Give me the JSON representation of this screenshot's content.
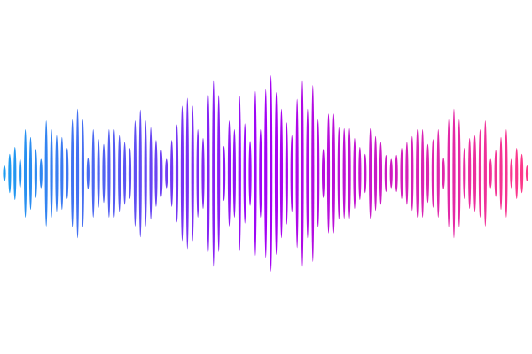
{
  "waveform": {
    "colors": {
      "start": "#1a9ff0",
      "middle": "#a300f5",
      "end": "#ff3a85"
    },
    "amplitudes": [
      0.08,
      0.2,
      0.27,
      0.15,
      0.45,
      0.37,
      0.25,
      0.15,
      0.54,
      0.45,
      0.39,
      0.37,
      0.26,
      0.55,
      0.66,
      0.55,
      0.16,
      0.45,
      0.35,
      0.3,
      0.45,
      0.45,
      0.39,
      0.32,
      0.26,
      0.54,
      0.65,
      0.54,
      0.47,
      0.34,
      0.24,
      0.15,
      0.34,
      0.5,
      0.69,
      0.77,
      0.69,
      0.45,
      0.36,
      0.8,
      0.95,
      0.8,
      0.28,
      0.54,
      0.45,
      0.79,
      0.51,
      0.33,
      0.84,
      0.45,
      0.86,
      1.0,
      0.83,
      0.66,
      0.52,
      0.39,
      0.76,
      0.95,
      0.66,
      0.9,
      0.55,
      0.25,
      0.61,
      0.61,
      0.47,
      0.46,
      0.46,
      0.36,
      0.27,
      0.2,
      0.46,
      0.38,
      0.32,
      0.19,
      0.15,
      0.19,
      0.26,
      0.32,
      0.38,
      0.45,
      0.45,
      0.3,
      0.35,
      0.45,
      0.16,
      0.55,
      0.66,
      0.55,
      0.26,
      0.36,
      0.39,
      0.45,
      0.54,
      0.15,
      0.24,
      0.37,
      0.45,
      0.15,
      0.26,
      0.2,
      0.08
    ]
  }
}
